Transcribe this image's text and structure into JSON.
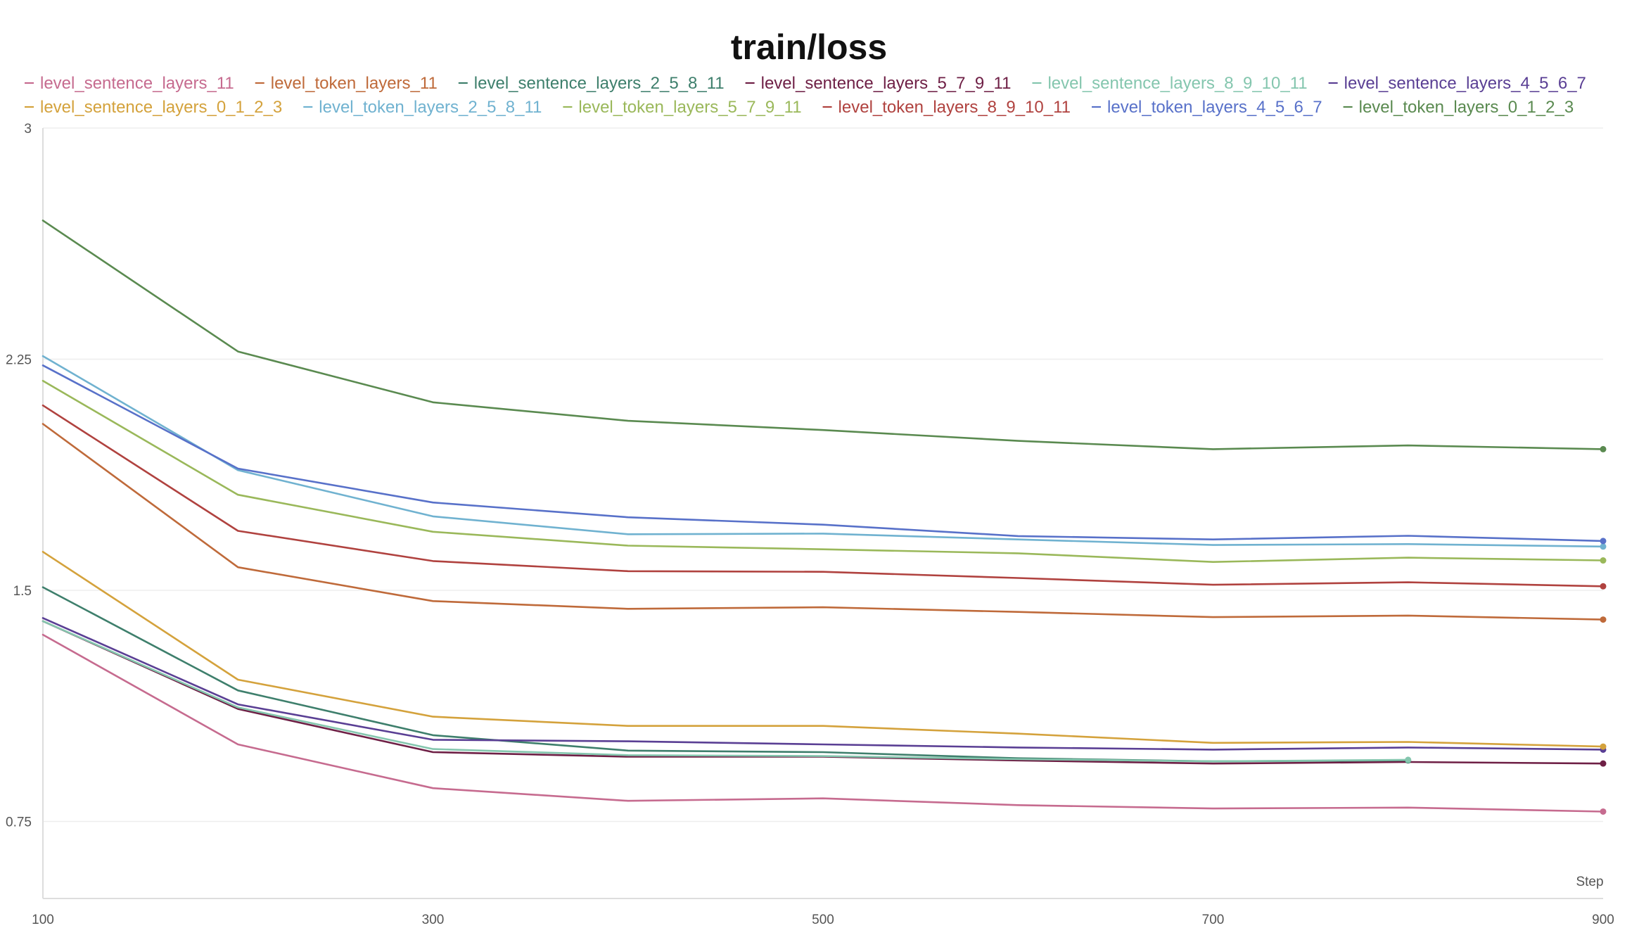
{
  "chart_data": {
    "type": "line",
    "title": "train/loss",
    "xlabel": "Step",
    "ylabel": "",
    "xlim": [
      100,
      900
    ],
    "ylim": [
      0.5,
      3
    ],
    "x_ticks": [
      "100",
      "300",
      "500",
      "700",
      "900"
    ],
    "y_ticks": [
      "0.75",
      "1.5",
      "2.25",
      "3"
    ],
    "grid": "horizontal",
    "legend_position": "top",
    "series": [
      {
        "name": "level_sentence_layers_11",
        "color": "#c66b8f",
        "x": [
          100,
          200,
          300,
          400,
          500,
          600,
          700,
          800,
          900
        ],
        "y": [
          1.356,
          1.0,
          0.858,
          0.817,
          0.825,
          0.803,
          0.792,
          0.795,
          0.782
        ]
      },
      {
        "name": "level_token_layers_11",
        "color": "#bf6a3a",
        "x": [
          100,
          200,
          300,
          400,
          500,
          600,
          700,
          800,
          900
        ],
        "y": [
          2.04,
          1.575,
          1.465,
          1.44,
          1.445,
          1.43,
          1.413,
          1.418,
          1.405
        ]
      },
      {
        "name": "level_sentence_layers_2_5_8_11",
        "color": "#3e7f6c",
        "x": [
          100,
          200,
          300,
          400,
          500,
          600,
          700,
          800
        ],
        "y": [
          1.51,
          1.175,
          1.03,
          0.98,
          0.975,
          0.955,
          0.945,
          0.948
        ]
      },
      {
        "name": "level_sentence_layers_5_7_9_11",
        "color": "#6e1f45",
        "x": [
          100,
          200,
          300,
          400,
          500,
          600,
          700,
          800,
          900
        ],
        "y": [
          1.4,
          1.115,
          0.975,
          0.96,
          0.96,
          0.948,
          0.938,
          0.943,
          0.938
        ]
      },
      {
        "name": "level_sentence_layers_8_9_10_11",
        "color": "#84c6ae",
        "x": [
          100,
          200,
          300,
          400,
          500,
          600,
          700,
          800
        ],
        "y": [
          1.4,
          1.12,
          0.985,
          0.965,
          0.962,
          0.952,
          0.945,
          0.95
        ]
      },
      {
        "name": "level_sentence_layers_4_5_6_7",
        "color": "#5a3f94",
        "x": [
          100,
          200,
          300,
          400,
          500,
          600,
          700,
          800,
          900
        ],
        "y": [
          1.41,
          1.13,
          1.015,
          1.01,
          1.0,
          0.99,
          0.983,
          0.99,
          0.983
        ]
      },
      {
        "name": "level_sentence_layers_0_1_2_3",
        "color": "#d4a23c",
        "x": [
          100,
          200,
          300,
          400,
          500,
          600,
          700,
          800,
          900
        ],
        "y": [
          1.625,
          1.21,
          1.09,
          1.06,
          1.06,
          1.035,
          1.005,
          1.008,
          0.993
        ]
      },
      {
        "name": "level_token_layers_2_5_8_11",
        "color": "#70b2d0",
        "x": [
          100,
          200,
          300,
          400,
          500,
          600,
          700,
          800,
          900
        ],
        "y": [
          2.26,
          1.89,
          1.74,
          1.682,
          1.684,
          1.665,
          1.647,
          1.65,
          1.642
        ]
      },
      {
        "name": "level_token_layers_5_7_9_11",
        "color": "#9ab85a",
        "x": [
          100,
          200,
          300,
          400,
          500,
          600,
          700,
          800,
          900
        ],
        "y": [
          2.18,
          1.81,
          1.69,
          1.645,
          1.633,
          1.62,
          1.592,
          1.606,
          1.597
        ]
      },
      {
        "name": "level_token_layers_8_9_10_11",
        "color": "#b0423f",
        "x": [
          100,
          200,
          300,
          400,
          500,
          600,
          700,
          800,
          900
        ],
        "y": [
          2.1,
          1.693,
          1.595,
          1.562,
          1.56,
          1.54,
          1.518,
          1.526,
          1.513
        ]
      },
      {
        "name": "level_token_layers_4_5_6_7",
        "color": "#5871c9",
        "x": [
          100,
          200,
          300,
          400,
          500,
          600,
          700,
          800,
          900
        ],
        "y": [
          2.23,
          1.895,
          1.785,
          1.737,
          1.713,
          1.676,
          1.665,
          1.677,
          1.66
        ]
      },
      {
        "name": "level_token_layers_0_1_2_3",
        "color": "#5a8a50",
        "x": [
          100,
          200,
          300,
          400,
          500,
          600,
          700,
          800,
          900
        ],
        "y": [
          2.7,
          2.275,
          2.11,
          2.05,
          2.02,
          1.985,
          1.958,
          1.97,
          1.958
        ]
      }
    ]
  }
}
